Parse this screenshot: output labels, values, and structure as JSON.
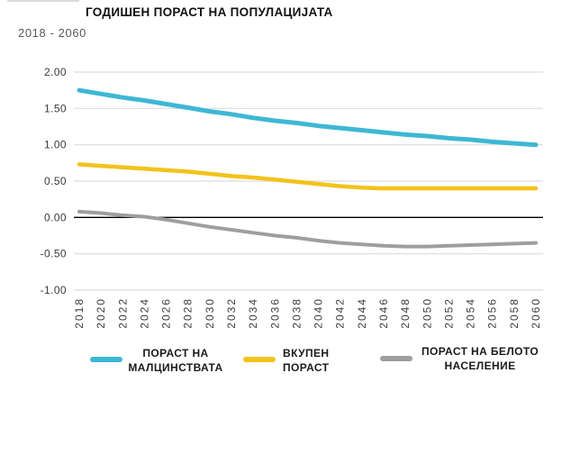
{
  "header": {
    "title": "ГОДИШЕН ПОРАСТ НА ПОПУЛАЦИЈАТА",
    "subtitle": "2018 - 2060"
  },
  "chart_data": {
    "type": "line",
    "title": "ГОДИШЕН ПОРАСТ НА ПОПУЛАЦИЈАТА",
    "subtitle": "2018 - 2060",
    "x": [
      2018,
      2020,
      2022,
      2024,
      2026,
      2028,
      2030,
      2032,
      2034,
      2036,
      2038,
      2040,
      2042,
      2044,
      2046,
      2048,
      2050,
      2052,
      2054,
      2056,
      2058,
      2060
    ],
    "y_ticks": [
      2.0,
      1.5,
      1.0,
      0.5,
      0.0,
      -0.5,
      -1.0
    ],
    "y_tick_labels": [
      "2.00",
      "1.50",
      "1.00",
      "0.50",
      "0.00",
      "-0.50",
      "-1.00"
    ],
    "ylim": [
      -1.0,
      2.0
    ],
    "xlabel": "",
    "ylabel": "",
    "grid": true,
    "zero_line": true,
    "legend_position": "bottom",
    "colors": {
      "grid": "#dcdcdc",
      "zero_line": "#000000",
      "tick_text": "#3c3c3c"
    },
    "series": [
      {
        "key": "minorities-growth",
        "name": "ПОРАСТ НА МАЛЦИНСТВАТА",
        "legend_lines": [
          "ПОРАСТ НА",
          "МАЛЦИНСТВАТА"
        ],
        "color": "#3eb7d4",
        "stroke_width": 5,
        "values": [
          1.75,
          1.7,
          1.65,
          1.61,
          1.56,
          1.51,
          1.46,
          1.42,
          1.37,
          1.33,
          1.3,
          1.26,
          1.23,
          1.2,
          1.17,
          1.14,
          1.12,
          1.09,
          1.07,
          1.04,
          1.02,
          1.0
        ]
      },
      {
        "key": "total-growth",
        "name": "ВКУПЕН ПОРАСТ",
        "legend_lines": [
          "ВКУПЕН",
          "ПОРАСТ"
        ],
        "color": "#f3c21b",
        "stroke_width": 4.5,
        "values": [
          0.73,
          0.71,
          0.69,
          0.67,
          0.65,
          0.63,
          0.6,
          0.57,
          0.55,
          0.52,
          0.49,
          0.46,
          0.43,
          0.41,
          0.4,
          0.4,
          0.4,
          0.4,
          0.4,
          0.4,
          0.4,
          0.4
        ]
      },
      {
        "key": "white-population-growth",
        "name": "ПОРАСТ НА БЕЛОТО НАСЕЛЕНИЕ",
        "legend_lines": [
          "ПОРАСТ НА БЕЛОТО",
          "НАСЕЛЕНИЕ"
        ],
        "color": "#9e9e9e",
        "stroke_width": 4,
        "values": [
          0.08,
          0.06,
          0.03,
          0.01,
          -0.03,
          -0.08,
          -0.13,
          -0.17,
          -0.21,
          -0.25,
          -0.28,
          -0.32,
          -0.35,
          -0.37,
          -0.39,
          -0.4,
          -0.4,
          -0.39,
          -0.38,
          -0.37,
          -0.36,
          -0.35
        ]
      }
    ]
  }
}
